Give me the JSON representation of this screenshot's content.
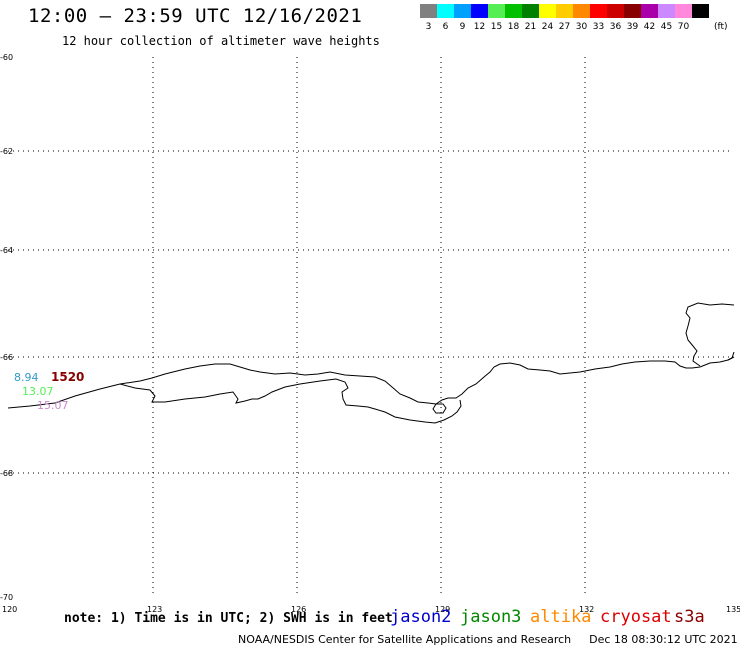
{
  "header": {
    "title": "12:00 – 23:59 UTC 12/16/2021",
    "subtitle": "12 hour collection of altimeter wave heights"
  },
  "legend": {
    "unit": "(ft)",
    "items": [
      {
        "label": "3",
        "color": "#808080"
      },
      {
        "label": "6",
        "color": "#00ffff"
      },
      {
        "label": "9",
        "color": "#00a0ff"
      },
      {
        "label": "12",
        "color": "#0000ff"
      },
      {
        "label": "15",
        "color": "#55ee55"
      },
      {
        "label": "18",
        "color": "#00c000"
      },
      {
        "label": "21",
        "color": "#008000"
      },
      {
        "label": "24",
        "color": "#ffff00"
      },
      {
        "label": "27",
        "color": "#ffcc00"
      },
      {
        "label": "30",
        "color": "#ff8800"
      },
      {
        "label": "33",
        "color": "#ff0000"
      },
      {
        "label": "36",
        "color": "#cc0000"
      },
      {
        "label": "39",
        "color": "#880000"
      },
      {
        "label": "42",
        "color": "#aa00aa"
      },
      {
        "label": "45",
        "color": "#cc88ff"
      },
      {
        "label": "70",
        "color": "#ff88dd"
      },
      {
        "label": "",
        "color": "#000000"
      }
    ]
  },
  "map": {
    "lat_ticks": [
      "-60",
      "-62",
      "-64",
      "-66",
      "-68",
      "-70"
    ],
    "lon_ticks": [
      "120",
      "123",
      "126",
      "129",
      "132",
      "135"
    ],
    "measurements": [
      {
        "label": "8.94",
        "color": "#3399cc"
      },
      {
        "label": "1520",
        "color": "#880000"
      },
      {
        "label": "13.07",
        "color": "#55ee55"
      },
      {
        "label": "15.07",
        "color": "#cc88cc"
      }
    ]
  },
  "footer": {
    "note": "note: 1) Time is in UTC; 2) SWH is in feet",
    "satellites": [
      {
        "name": "jason2",
        "color": "#0000cc"
      },
      {
        "name": "jason3",
        "color": "#008800"
      },
      {
        "name": "altika",
        "color": "#ff8800"
      },
      {
        "name": "cryosat",
        "color": "#dd0000"
      },
      {
        "name": "s3a",
        "color": "#880000"
      }
    ],
    "credit": "NOAA/NESDIS Center for Satellite Applications and Research",
    "timestamp": "Dec 18 08:30:12 UTC 2021"
  }
}
